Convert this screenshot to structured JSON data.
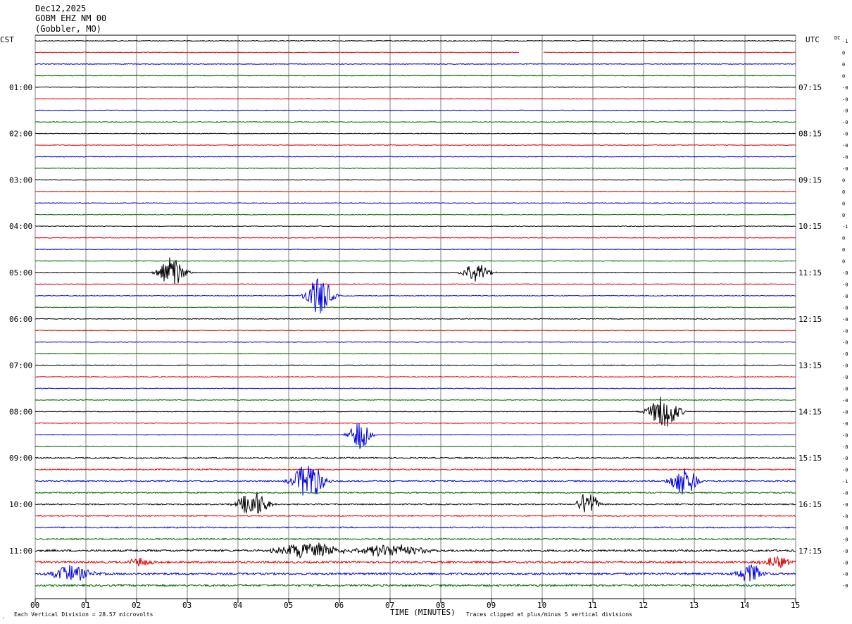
{
  "header": {
    "date": "Dec12,2025",
    "station": "GOBM EHZ NM 00",
    "location": "(Gobbler, MO)"
  },
  "left_zone_label": "CST",
  "right_zone_label": "UTC",
  "dc_label": "DC",
  "colors": {
    "black": "#000000",
    "red": "#e00000",
    "blue": "#0000dd",
    "green": "#006400",
    "grid": "#808080"
  },
  "footer": {
    "xlabel": "TIME (MINUTES)",
    "scale_note": "Each Vertical Division =   28.57 microvolts",
    "clip_note": "Traces clipped at plus/minus 5 vertical divisions"
  },
  "chart_data": {
    "type": "seismogram",
    "minutes_per_line": 15,
    "lines_per_hour": 4,
    "x_ticks": [
      "00",
      "01",
      "02",
      "03",
      "04",
      "05",
      "06",
      "07",
      "08",
      "09",
      "10",
      "11",
      "12",
      "13",
      "14",
      "15"
    ],
    "xlim": [
      0,
      15
    ],
    "rows": 48,
    "color_cycle": [
      "black",
      "red",
      "blue",
      "green"
    ],
    "cst_hour_labels": [
      {
        "row": 4,
        "text": "01:00"
      },
      {
        "row": 8,
        "text": "02:00"
      },
      {
        "row": 12,
        "text": "03:00"
      },
      {
        "row": 16,
        "text": "04:00"
      },
      {
        "row": 20,
        "text": "05:00"
      },
      {
        "row": 24,
        "text": "06:00"
      },
      {
        "row": 28,
        "text": "07:00"
      },
      {
        "row": 32,
        "text": "08:00"
      },
      {
        "row": 36,
        "text": "09:00"
      },
      {
        "row": 40,
        "text": "10:00"
      },
      {
        "row": 44,
        "text": "11:00"
      }
    ],
    "utc_hour_labels": [
      {
        "row": 4,
        "text": "07:15"
      },
      {
        "row": 8,
        "text": "08:15"
      },
      {
        "row": 12,
        "text": "09:15"
      },
      {
        "row": 16,
        "text": "10:15"
      },
      {
        "row": 20,
        "text": "11:15"
      },
      {
        "row": 24,
        "text": "12:15"
      },
      {
        "row": 28,
        "text": "13:15"
      },
      {
        "row": 32,
        "text": "14:15"
      },
      {
        "row": 36,
        "text": "15:15"
      },
      {
        "row": 40,
        "text": "16:15"
      },
      {
        "row": 44,
        "text": "17:15"
      }
    ],
    "dc_offsets": [
      "-1",
      "0",
      "0",
      "0",
      "-0",
      "-0",
      "-0",
      "-0",
      "-0",
      "-0",
      "-0",
      "-0",
      "0",
      "0",
      "0",
      "0",
      "-1",
      "0",
      "0",
      "0",
      "-0",
      "-0",
      "-0",
      "-0",
      "-0",
      "-0",
      "-0",
      "-0",
      "-0",
      "-0",
      "-0",
      "-0",
      "-0",
      "-0",
      "-0",
      "-0",
      "-0",
      "-0",
      "-1",
      "-0",
      "-0",
      "-0",
      "-0",
      "-0",
      "-0",
      "-0",
      "-0",
      "-0"
    ],
    "gap": {
      "row": 1,
      "start_min": 9.55,
      "end_min": 10.02
    },
    "events": [
      {
        "row": 20,
        "center_min": 2.7,
        "amp": 5,
        "width_min": 0.5
      },
      {
        "row": 22,
        "center_min": 5.6,
        "amp": 6,
        "width_min": 0.5
      },
      {
        "row": 20,
        "center_min": 8.7,
        "amp": 3.5,
        "width_min": 0.5
      },
      {
        "row": 32,
        "center_min": 12.4,
        "amp": 5,
        "width_min": 0.6
      },
      {
        "row": 34,
        "center_min": 6.4,
        "amp": 4.5,
        "width_min": 0.4
      },
      {
        "row": 38,
        "center_min": 5.4,
        "amp": 6,
        "width_min": 0.6
      },
      {
        "row": 38,
        "center_min": 12.8,
        "amp": 5,
        "width_min": 0.5
      },
      {
        "row": 40,
        "center_min": 4.3,
        "amp": 4,
        "width_min": 0.6
      },
      {
        "row": 40,
        "center_min": 10.9,
        "amp": 4,
        "width_min": 0.4
      },
      {
        "row": 44,
        "center_min": 5.4,
        "amp": 2.5,
        "width_min": 1.2
      },
      {
        "row": 44,
        "center_min": 7.0,
        "amp": 1.8,
        "width_min": 1.5
      },
      {
        "row": 45,
        "center_min": 2.1,
        "amp": 1.5,
        "width_min": 0.5
      },
      {
        "row": 45,
        "center_min": 14.6,
        "amp": 2,
        "width_min": 0.6
      },
      {
        "row": 46,
        "center_min": 0.7,
        "amp": 2.5,
        "width_min": 0.8
      },
      {
        "row": 46,
        "center_min": 14.1,
        "amp": 3,
        "width_min": 0.5
      }
    ]
  }
}
